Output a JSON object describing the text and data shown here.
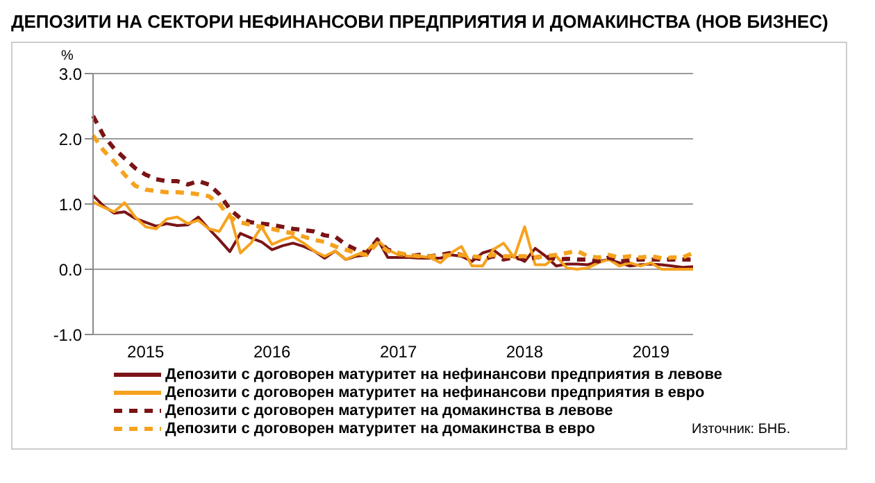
{
  "chart_data": {
    "type": "line",
    "title": "ДЕПОЗИТИ НА СЕКТОРИ НЕФИНАНСОВИ ПРЕДПРИЯТИЯ И ДОМАКИНСТВА (НОВ БИЗНЕС)",
    "ylabel": "%",
    "categories": [
      null,
      null,
      null,
      null,
      null,
      "2015",
      null,
      null,
      null,
      null,
      null,
      null,
      null,
      null,
      null,
      null,
      null,
      "2016",
      null,
      null,
      null,
      null,
      null,
      null,
      null,
      null,
      null,
      null,
      null,
      "2017",
      null,
      null,
      null,
      null,
      null,
      null,
      null,
      null,
      null,
      null,
      null,
      "2018",
      null,
      null,
      null,
      null,
      null,
      null,
      null,
      null,
      null,
      null,
      null,
      "2019",
      null,
      null,
      null,
      null
    ],
    "series": [
      {
        "name": "Депозити с договорен матуритет на нефинансови предприятия в левове",
        "color": "#7b1416",
        "line_style": "solid",
        "values": [
          1.13,
          0.97,
          0.86,
          0.88,
          0.78,
          0.72,
          0.66,
          0.7,
          0.67,
          0.68,
          0.8,
          0.62,
          0.45,
          0.27,
          0.55,
          0.48,
          0.42,
          0.3,
          0.36,
          0.4,
          0.35,
          0.28,
          0.17,
          0.28,
          0.15,
          0.2,
          0.22,
          0.47,
          0.18,
          0.18,
          0.18,
          0.17,
          0.17,
          0.17,
          0.22,
          0.2,
          0.12,
          0.25,
          0.3,
          0.18,
          0.2,
          0.12,
          0.32,
          0.2,
          0.05,
          0.08,
          0.08,
          0.07,
          0.12,
          0.15,
          0.1,
          0.05,
          0.07,
          0.08,
          0.07,
          0.05,
          0.03,
          0.04
        ]
      },
      {
        "name": "Депозити с договорен матуритет на нефинансови предприятия в евро",
        "color": "#f5a21e",
        "line_style": "solid",
        "values": [
          1.03,
          0.95,
          0.88,
          1.02,
          0.8,
          0.65,
          0.62,
          0.77,
          0.8,
          0.7,
          0.75,
          0.62,
          0.58,
          0.85,
          0.25,
          0.4,
          0.65,
          0.38,
          0.45,
          0.5,
          0.4,
          0.28,
          0.2,
          0.28,
          0.15,
          0.22,
          0.28,
          0.45,
          0.3,
          0.22,
          0.2,
          0.2,
          0.18,
          0.1,
          0.25,
          0.35,
          0.05,
          0.05,
          0.3,
          0.4,
          0.18,
          0.65,
          0.07,
          0.07,
          0.2,
          0.02,
          0,
          0.02,
          0.1,
          0.15,
          0.05,
          0.1,
          0.05,
          0.1,
          0,
          0,
          0,
          0
        ]
      },
      {
        "name": "Депозити с договорен матуритет на домакинства в левове",
        "color": "#7b1416",
        "line_style": "dashed",
        "values": [
          2.35,
          2.05,
          1.85,
          1.7,
          1.55,
          1.45,
          1.38,
          1.35,
          1.35,
          1.3,
          1.35,
          1.3,
          1.15,
          0.92,
          0.78,
          0.72,
          0.7,
          0.68,
          0.65,
          0.62,
          0.6,
          0.58,
          0.52,
          0.5,
          0.38,
          0.3,
          0.25,
          0.45,
          0.3,
          0.25,
          0.2,
          0.22,
          0.2,
          0.22,
          0.25,
          0.22,
          0.18,
          0.15,
          0.2,
          0.15,
          0.18,
          0.15,
          0.18,
          0.2,
          0.15,
          0.16,
          0.15,
          0.15,
          0.12,
          0.18,
          0.12,
          0.14,
          0.15,
          0.15,
          0.15,
          0.15,
          0.15,
          0.15
        ]
      },
      {
        "name": "Депозити с договорен матуритет на домакинства в евро",
        "color": "#f5a21e",
        "line_style": "dashed",
        "values": [
          2.05,
          1.82,
          1.65,
          1.45,
          1.28,
          1.22,
          1.2,
          1.18,
          1.18,
          1.17,
          1.15,
          1.12,
          1,
          0.8,
          0.72,
          0.68,
          0.65,
          0.62,
          0.58,
          0.55,
          0.5,
          0.45,
          0.42,
          0.35,
          0.3,
          0.25,
          0.22,
          0.4,
          0.28,
          0.25,
          0.22,
          0.2,
          0.2,
          0.2,
          0.22,
          0.22,
          0.2,
          0.18,
          0.22,
          0.2,
          0.2,
          0.2,
          0.18,
          0.2,
          0.22,
          0.25,
          0.28,
          0.2,
          0.18,
          0.22,
          0.18,
          0.2,
          0.18,
          0.2,
          0.17,
          0.18,
          0.18,
          0.25
        ]
      }
    ],
    "ylim": [
      -1,
      3
    ],
    "yticks": [
      {
        "value": -1,
        "label": "-1.0"
      },
      {
        "value": 0,
        "label": "0.0"
      },
      {
        "value": 1,
        "label": "1.0"
      },
      {
        "value": 2,
        "label": "2.0"
      },
      {
        "value": 3,
        "label": "3.0"
      }
    ],
    "grid": "y",
    "legend": "bottom",
    "marker": "none",
    "annotations": [
      "Източник: БНБ."
    ]
  }
}
